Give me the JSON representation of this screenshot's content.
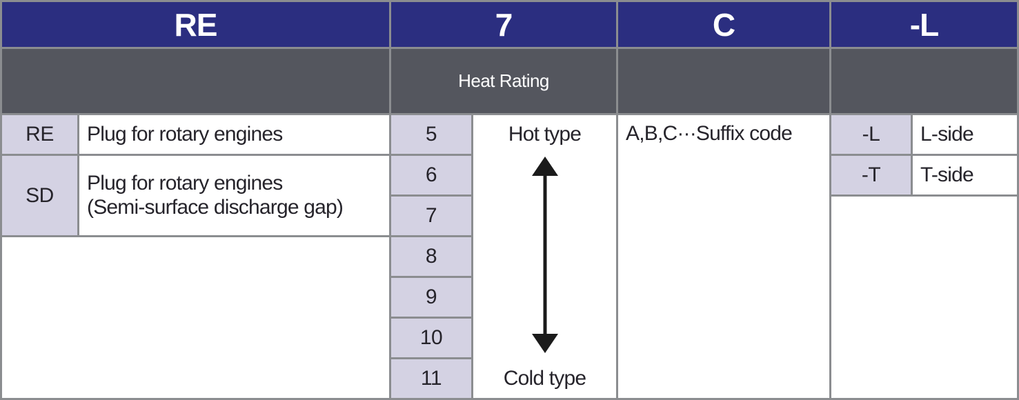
{
  "colors": {
    "header_bg": "#2b2e80",
    "band_bg": "#54565e",
    "code_cell_bg": "#d4d2e3",
    "grid_line": "#8b8d90",
    "cell_bg": "#ffffff",
    "text": "#26242b",
    "header_text": "#ffffff",
    "arrow": "#1b1b1b"
  },
  "headers": {
    "prefix": "RE",
    "heat_rating": "7",
    "suffix": "C",
    "side": "-L"
  },
  "band": {
    "heat_rating_label": "Heat Rating"
  },
  "prefix_legend": {
    "re_code": "RE",
    "re_desc": "Plug for rotary engines",
    "sd_code": "SD",
    "sd_desc_line1": "Plug for rotary engines",
    "sd_desc_line2": "(Semi-surface discharge gap)"
  },
  "heat_rating": {
    "values": [
      "5",
      "6",
      "7",
      "8",
      "9",
      "10",
      "11"
    ],
    "hot_label": "Hot type",
    "cold_label": "Cold type"
  },
  "suffix_legend": {
    "note": "A,B,C···Suffix code"
  },
  "side_legend": {
    "l_code": "-L",
    "l_desc": "L-side",
    "t_code": "-T",
    "t_desc": "T-side"
  }
}
